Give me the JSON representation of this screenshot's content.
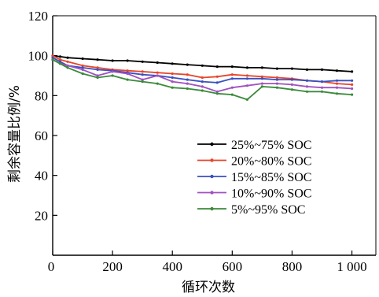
{
  "chart_data": {
    "type": "line",
    "title": "",
    "xlabel": "循环次数",
    "ylabel": "剩余容量比例/%",
    "xlim": [
      0,
      1080
    ],
    "ylim": [
      0,
      120
    ],
    "xticks": [
      0,
      200,
      400,
      600,
      800,
      1000
    ],
    "xtick_labels": [
      "0",
      "200",
      "400",
      "600",
      "800",
      "1 000"
    ],
    "yticks": [
      20,
      40,
      60,
      80,
      100,
      120
    ],
    "ytick_labels": [
      "20",
      "40",
      "60",
      "80",
      "100",
      "120"
    ],
    "grid": false,
    "legend_position": "center-right",
    "series": [
      {
        "name": "25%~75% SOC",
        "color": "#000000",
        "x": [
          0,
          25,
          50,
          100,
          150,
          200,
          250,
          300,
          350,
          400,
          450,
          500,
          550,
          600,
          650,
          700,
          750,
          800,
          850,
          900,
          950,
          1000
        ],
        "y": [
          100,
          99.5,
          99,
          98.5,
          98,
          97.5,
          97.5,
          97,
          96.5,
          96,
          95.5,
          95,
          94.5,
          94.5,
          94,
          94,
          93.5,
          93.5,
          93,
          93,
          92.5,
          92
        ]
      },
      {
        "name": "20%~80% SOC",
        "color": "#e8442a",
        "x": [
          0,
          25,
          50,
          100,
          150,
          200,
          250,
          300,
          350,
          400,
          450,
          500,
          550,
          600,
          650,
          700,
          750,
          800,
          850,
          900,
          950,
          1000
        ],
        "y": [
          100,
          98,
          97,
          95,
          94,
          93,
          92.5,
          92,
          91.5,
          91,
          90.5,
          89,
          89.5,
          90.5,
          90,
          89.5,
          89,
          88.5,
          87.5,
          87,
          86,
          85.5
        ]
      },
      {
        "name": "15%~85% SOC",
        "color": "#3a4fc0",
        "x": [
          0,
          25,
          50,
          100,
          150,
          200,
          250,
          300,
          350,
          400,
          450,
          500,
          550,
          600,
          650,
          700,
          750,
          800,
          850,
          900,
          950,
          1000
        ],
        "y": [
          99,
          97,
          95,
          94,
          93,
          92.5,
          91.5,
          90.5,
          90,
          89,
          88,
          87,
          86.5,
          88.5,
          88.5,
          88.5,
          88,
          88,
          87.5,
          87,
          87.5,
          87.5
        ]
      },
      {
        "name": "10%~90% SOC",
        "color": "#a050c0",
        "x": [
          0,
          25,
          50,
          100,
          150,
          200,
          250,
          300,
          350,
          400,
          450,
          500,
          550,
          600,
          650,
          700,
          750,
          800,
          850,
          900,
          950,
          1000
        ],
        "y": [
          98,
          96,
          95,
          93,
          90,
          92,
          91,
          88,
          90,
          87,
          86,
          84.5,
          82,
          84,
          85,
          86,
          86,
          85.5,
          84.5,
          84,
          84,
          83.5
        ]
      },
      {
        "name": "5%~95% SOC",
        "color": "#3a8a3a",
        "x": [
          0,
          25,
          50,
          100,
          150,
          200,
          250,
          300,
          350,
          400,
          450,
          500,
          550,
          600,
          650,
          700,
          750,
          800,
          850,
          900,
          950,
          1000
        ],
        "y": [
          98,
          96,
          94,
          91,
          89,
          90,
          88,
          87,
          86,
          84,
          83.5,
          82.5,
          81,
          80.5,
          78,
          84.5,
          84,
          83,
          82,
          82,
          81,
          80.5
        ]
      }
    ]
  }
}
